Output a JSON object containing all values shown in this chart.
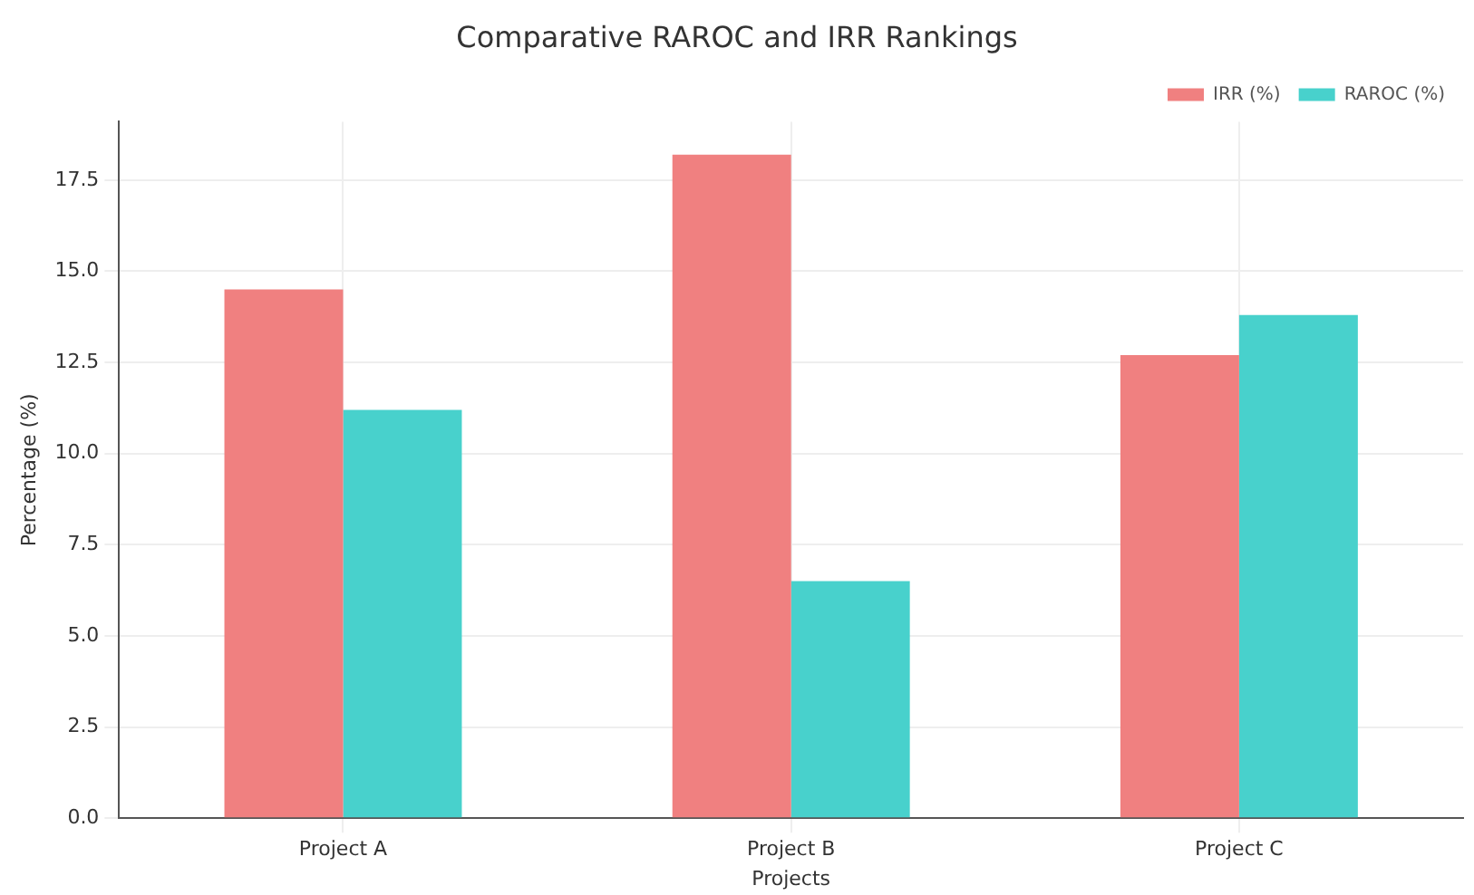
{
  "chart_data": {
    "type": "bar",
    "title": "Comparative RAROC and IRR Rankings",
    "xlabel": "Projects",
    "ylabel": "Percentage (%)",
    "categories": [
      "Project A",
      "Project B",
      "Project C"
    ],
    "series": [
      {
        "name": "IRR (%)",
        "color": "#f08080",
        "values": [
          14.5,
          18.2,
          12.7
        ]
      },
      {
        "name": "RAROC (%)",
        "color": "#48d1cc",
        "values": [
          11.2,
          6.5,
          13.8
        ]
      }
    ],
    "ylim": [
      0,
      19.1
    ],
    "yticks": [
      {
        "value": 0,
        "label": "0.0"
      },
      {
        "value": 2.5,
        "label": "2.5"
      },
      {
        "value": 5,
        "label": "5.0"
      },
      {
        "value": 7.5,
        "label": "7.5"
      },
      {
        "value": 10,
        "label": "10.0"
      },
      {
        "value": 12.5,
        "label": "12.5"
      },
      {
        "value": 15,
        "label": "15.0"
      },
      {
        "value": 17.5,
        "label": "17.5"
      }
    ],
    "grid": true,
    "legend": "top right"
  }
}
